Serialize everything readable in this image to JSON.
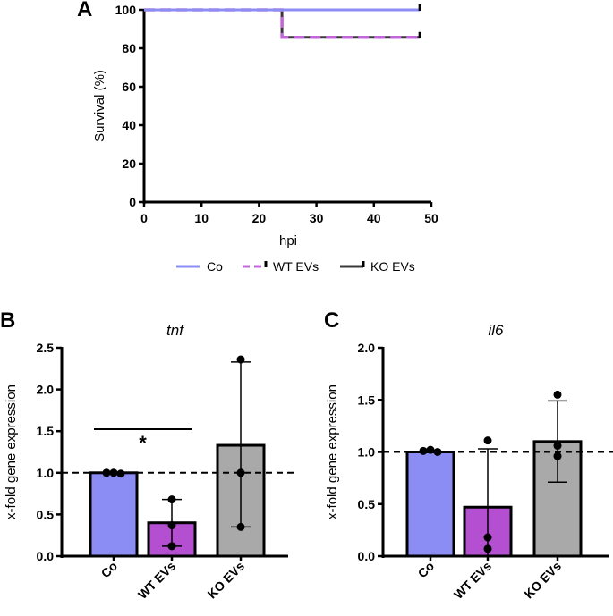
{
  "panels": {
    "a": "A",
    "b": "B",
    "c": "C"
  },
  "colors": {
    "co": "#8c8cf5",
    "wt": "#b44fd2",
    "ko": "#a9a9a9",
    "ko_line": "#3a3a3a",
    "wt_line": "#c168d8"
  },
  "chart_data": [
    {
      "type": "line",
      "panel": "A",
      "title": "",
      "xlabel": "hpi",
      "ylabel": "Survival (%)",
      "xlim": [
        0,
        50
      ],
      "ylim": [
        0,
        100
      ],
      "xticks": [
        "0",
        "10",
        "20",
        "30",
        "40",
        "50"
      ],
      "yticks": [
        "0",
        "20",
        "40",
        "60",
        "80",
        "100"
      ],
      "legend_position": "bottom",
      "series": [
        {
          "name": "Co",
          "x": [
            0,
            48
          ],
          "y": [
            100,
            100
          ],
          "style": "solid"
        },
        {
          "name": "WT EVs",
          "x": [
            0,
            24,
            24,
            48
          ],
          "y": [
            100,
            100,
            85.7,
            85.7
          ],
          "style": "dashed"
        },
        {
          "name": "KO EVs",
          "x": [
            0,
            24,
            24,
            48
          ],
          "y": [
            100,
            100,
            85.7,
            85.7
          ],
          "style": "step"
        }
      ]
    },
    {
      "type": "bar",
      "panel": "B",
      "title": "tnf",
      "xlabel": "",
      "ylabel": "x-fold gene expression",
      "categories": [
        "Co",
        "WT EVs",
        "KO EVs"
      ],
      "values": [
        1.0,
        0.4,
        1.33
      ],
      "error_low": [
        1.0,
        0.12,
        0.35
      ],
      "error_high": [
        1.0,
        0.68,
        2.33
      ],
      "points": [
        [
          1.0,
          1.0,
          0.99
        ],
        [
          0.68,
          0.37,
          0.12
        ],
        [
          2.36,
          1.0,
          0.35
        ]
      ],
      "ylim": [
        0,
        2.5
      ],
      "yticks": [
        "0.0",
        "0.5",
        "1.0",
        "1.5",
        "2.0",
        "2.5"
      ],
      "reference_line": 1.0,
      "significance": {
        "from": "Co",
        "to": "WT EVs",
        "label": "*"
      }
    },
    {
      "type": "bar",
      "panel": "C",
      "title": "il6",
      "xlabel": "",
      "ylabel": "x-fold gene expression",
      "categories": [
        "Co",
        "WT EVs",
        "KO EVs"
      ],
      "values": [
        1.0,
        0.47,
        1.1
      ],
      "error_low": [
        1.0,
        0.0,
        0.71
      ],
      "error_high": [
        1.0,
        1.03,
        1.49
      ],
      "points": [
        [
          1.01,
          1.02,
          1.0
        ],
        [
          1.11,
          0.18,
          0.07
        ],
        [
          1.55,
          1.06,
          0.96
        ]
      ],
      "ylim": [
        0,
        2.0
      ],
      "yticks": [
        "0.0",
        "0.5",
        "1.0",
        "1.5",
        "2.0"
      ],
      "reference_line": 1.0
    }
  ]
}
